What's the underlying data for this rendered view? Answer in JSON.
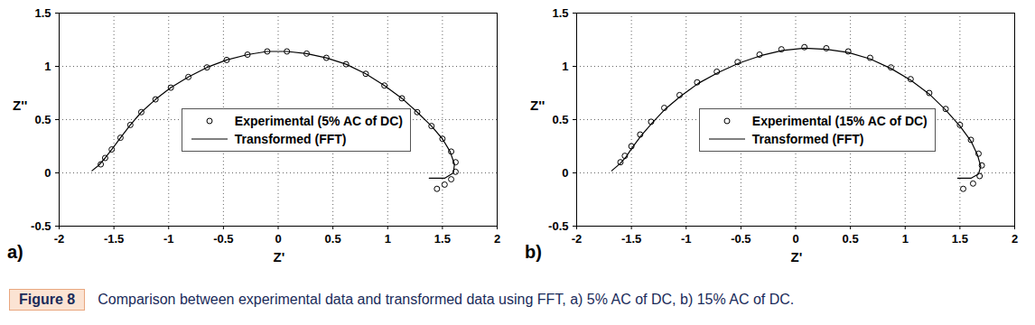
{
  "chart_data": [
    {
      "type": "scatter",
      "panel_label": "a)",
      "x_label": "Z'",
      "y_label": "Z''",
      "xlim": [
        -2,
        2
      ],
      "xticks": [
        -2,
        -1.5,
        -1,
        -0.5,
        0,
        0.5,
        1,
        1.5,
        2
      ],
      "ylim": [
        -0.5,
        1.5
      ],
      "yticks": [
        -0.5,
        0,
        0.5,
        1,
        1.5
      ],
      "grid": true,
      "legend": "center",
      "series": [
        {
          "name": "Experimental (5% AC of DC)",
          "type": "scatter",
          "marker": "circle",
          "color": "#000000",
          "x": [
            -1.62,
            -1.58,
            -1.52,
            -1.44,
            -1.35,
            -1.25,
            -1.12,
            -0.98,
            -0.82,
            -0.65,
            -0.47,
            -0.28,
            -0.1,
            0.08,
            0.26,
            0.44,
            0.62,
            0.8,
            0.97,
            1.13,
            1.27,
            1.4,
            1.5,
            1.58,
            1.62,
            1.62,
            1.58,
            1.52,
            1.45
          ],
          "values": [
            0.08,
            0.14,
            0.22,
            0.33,
            0.45,
            0.57,
            0.69,
            0.8,
            0.9,
            0.99,
            1.06,
            1.11,
            1.14,
            1.14,
            1.12,
            1.08,
            1.02,
            0.93,
            0.82,
            0.7,
            0.57,
            0.44,
            0.32,
            0.2,
            0.1,
            0.01,
            -0.06,
            -0.11,
            -0.15
          ]
        },
        {
          "name": "Transformed (FFT)",
          "type": "line",
          "line_style": "solid",
          "color": "#000000",
          "x": [
            -1.7,
            -1.64,
            -1.58,
            -1.52,
            -1.44,
            -1.35,
            -1.25,
            -1.12,
            -0.98,
            -0.82,
            -0.65,
            -0.47,
            -0.28,
            -0.1,
            0.08,
            0.26,
            0.44,
            0.62,
            0.8,
            0.97,
            1.13,
            1.27,
            1.4,
            1.5,
            1.57,
            1.61,
            1.6,
            1.52,
            1.38
          ],
          "values": [
            0.02,
            0.07,
            0.14,
            0.22,
            0.33,
            0.45,
            0.57,
            0.69,
            0.8,
            0.9,
            0.99,
            1.06,
            1.11,
            1.14,
            1.14,
            1.12,
            1.08,
            1.02,
            0.93,
            0.82,
            0.7,
            0.57,
            0.44,
            0.32,
            0.2,
            0.08,
            0.0,
            -0.05,
            -0.05
          ]
        }
      ]
    },
    {
      "type": "scatter",
      "panel_label": "b)",
      "x_label": "Z'",
      "y_label": "Z''",
      "xlim": [
        -2,
        2
      ],
      "xticks": [
        -2,
        -1.5,
        -1,
        -0.5,
        0,
        0.5,
        1,
        1.5,
        2
      ],
      "ylim": [
        -0.5,
        1.5
      ],
      "yticks": [
        -0.5,
        0,
        0.5,
        1,
        1.5
      ],
      "grid": true,
      "legend": "center",
      "series": [
        {
          "name": "Experimental (15% AC of DC)",
          "type": "scatter",
          "marker": "circle",
          "color": "#000000",
          "x": [
            -1.6,
            -1.56,
            -1.5,
            -1.42,
            -1.32,
            -1.2,
            -1.06,
            -0.9,
            -0.72,
            -0.53,
            -0.33,
            -0.13,
            0.08,
            0.28,
            0.48,
            0.68,
            0.87,
            1.05,
            1.22,
            1.37,
            1.5,
            1.6,
            1.67,
            1.7,
            1.68,
            1.62,
            1.53
          ],
          "values": [
            0.1,
            0.16,
            0.25,
            0.36,
            0.48,
            0.61,
            0.73,
            0.85,
            0.95,
            1.04,
            1.11,
            1.16,
            1.18,
            1.17,
            1.14,
            1.08,
            0.99,
            0.88,
            0.75,
            0.6,
            0.45,
            0.31,
            0.18,
            0.07,
            -0.03,
            -0.1,
            -0.15
          ]
        },
        {
          "name": "Transformed (FFT)",
          "type": "line",
          "line_style": "solid",
          "color": "#000000",
          "x": [
            -1.68,
            -1.6,
            -1.55,
            -1.49,
            -1.41,
            -1.31,
            -1.19,
            -1.05,
            -0.89,
            -0.71,
            -0.52,
            -0.32,
            -0.12,
            0.08,
            0.28,
            0.48,
            0.68,
            0.87,
            1.05,
            1.22,
            1.37,
            1.5,
            1.6,
            1.66,
            1.69,
            1.67,
            1.6,
            1.48
          ],
          "values": [
            0.02,
            0.09,
            0.15,
            0.24,
            0.35,
            0.47,
            0.6,
            0.72,
            0.84,
            0.94,
            1.03,
            1.1,
            1.15,
            1.17,
            1.16,
            1.13,
            1.07,
            0.98,
            0.87,
            0.74,
            0.59,
            0.44,
            0.3,
            0.17,
            0.06,
            -0.01,
            -0.05,
            -0.05
          ]
        }
      ]
    }
  ],
  "caption_label": "Figure 8",
  "caption": "Comparison between experimental data and transformed data using FFT, a) 5% AC of DC, b) 15% AC of DC."
}
